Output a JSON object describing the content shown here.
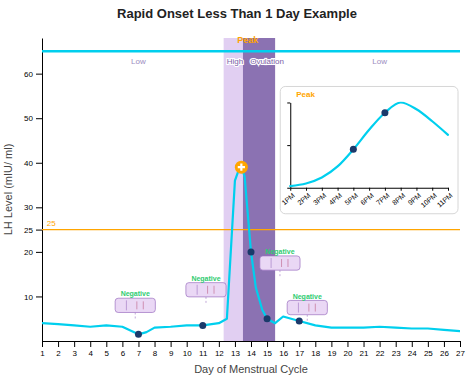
{
  "chart_data": [
    {
      "type": "line",
      "title": "Rapid Onset Less Than 1 Day Example",
      "x_label": "Day of Menstrual Cycle",
      "y_label": "LH Level (mIU/ ml)",
      "xlim": [
        1,
        27
      ],
      "ylim": [
        0,
        68
      ],
      "xticks": [
        1,
        2,
        3,
        4,
        5,
        6,
        7,
        8,
        9,
        10,
        11,
        12,
        13,
        14,
        15,
        16,
        17,
        18,
        19,
        20,
        21,
        22,
        23,
        24,
        25,
        26,
        27
      ],
      "yticks": [
        10,
        20,
        25,
        30,
        40,
        50,
        60
      ],
      "grid": false,
      "series": [
        {
          "type": "line",
          "color": "#00CFEE",
          "x": [
            1,
            2,
            3,
            4,
            5,
            6,
            7,
            7.5,
            8,
            9,
            10,
            11,
            12,
            12.5,
            13,
            13.2,
            13.4,
            13.6,
            14,
            14.3,
            14.7,
            15,
            15.5,
            16,
            17,
            18,
            19,
            20,
            21,
            22,
            23,
            24,
            25,
            26,
            27
          ],
          "values": [
            4,
            3.8,
            3.5,
            3.2,
            3.5,
            3.2,
            1.5,
            2.0,
            3.0,
            3.2,
            3.5,
            3.5,
            4.0,
            5.0,
            36,
            38,
            39,
            37,
            20,
            12,
            7,
            5,
            4,
            5.5,
            4.5,
            3.5,
            3.0,
            3.0,
            3.0,
            3.2,
            3.0,
            2.8,
            2.8,
            2.5,
            2.2
          ]
        },
        {
          "type": "scatter",
          "color": "#1B3A6B",
          "marker": "circle",
          "x": [
            7,
            11,
            14,
            15,
            17
          ],
          "values": [
            1.5,
            3.5,
            20,
            5,
            4.5
          ]
        },
        {
          "type": "scatter",
          "color": "#FFA500",
          "marker": "plus",
          "x": [
            13.4
          ],
          "values": [
            39
          ]
        }
      ],
      "reference_lines": [
        {
          "y": 25,
          "color": "#FFA500",
          "label": "25",
          "label_x": 1.3,
          "label_y": 25.8
        },
        {
          "y": 65,
          "color": "#00CFEE"
        }
      ],
      "zones": [
        {
          "x": [
            12.3,
            13.5
          ],
          "color": "#C8A8E8"
        },
        {
          "x": [
            13.5,
            15.5
          ],
          "color": "#7B5EA7"
        }
      ],
      "annotations": [
        {
          "text": "Low",
          "x": 7.0,
          "y": 63.5,
          "color": "#9B8DC0"
        },
        {
          "text": "High",
          "x": 13.0,
          "y": 63.5,
          "color": "#7B5EA7"
        },
        {
          "text": "Ovulation",
          "x": 15.0,
          "y": 63.5,
          "color": "#7B5EA7"
        },
        {
          "text": "Low",
          "x": 22.0,
          "y": 63.5,
          "color": "#9B8DC0"
        }
      ],
      "peak_label": {
        "text": "Peak",
        "x": 13.8,
        "y": 67.5,
        "color": "#FFA500"
      },
      "test_boxes": [
        {
          "x": 6.8,
          "y": 8.0,
          "label": "Negative",
          "color": "#2ECC71"
        },
        {
          "x": 11.2,
          "y": 11.5,
          "label": "Negative",
          "color": "#2ECC71"
        },
        {
          "x": 15.8,
          "y": 17.5,
          "label": "Negative",
          "color": "#2ECC71"
        },
        {
          "x": 17.5,
          "y": 7.5,
          "label": "Negative",
          "color": "#2ECC71"
        }
      ]
    },
    {
      "type": "line",
      "categories": [
        "1PM",
        "2PM",
        "3PM",
        "4PM",
        "5PM",
        "6PM",
        "7PM",
        "8PM",
        "9PM",
        "10PM",
        "11PM"
      ],
      "ylim": [
        0,
        1
      ],
      "yticks": [
        0,
        0.5,
        1
      ],
      "tick_labels": "x",
      "series": [
        {
          "type": "line",
          "color": "#00CFEE",
          "values": [
            0.02,
            0.05,
            0.12,
            0.25,
            0.45,
            0.68,
            0.88,
            1.0,
            0.92,
            0.78,
            0.62
          ]
        },
        {
          "type": "scatter",
          "color": "#1B3A6B",
          "marker": "circle",
          "values": [
            null,
            null,
            null,
            null,
            0.45,
            null,
            0.88,
            null,
            null,
            null,
            null
          ]
        }
      ],
      "annotations": [
        {
          "text": "Peak",
          "color": "#FFA500"
        }
      ]
    }
  ]
}
